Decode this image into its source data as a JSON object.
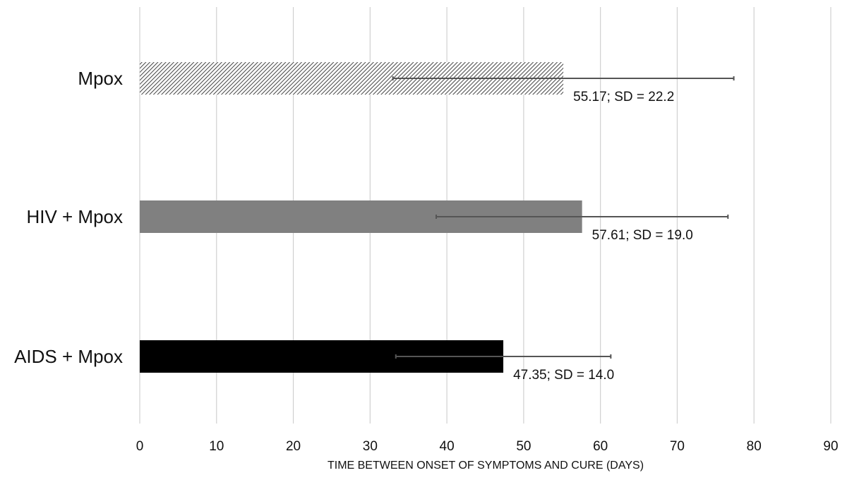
{
  "chart_data": {
    "type": "bar",
    "orientation": "horizontal",
    "title": "",
    "xlabel": "TIME BETWEEN ONSET OF SYMPTOMS AND CURE  (DAYS)",
    "ylabel": "",
    "xlim": [
      0,
      90
    ],
    "xticks": [
      0,
      10,
      20,
      30,
      40,
      50,
      60,
      70,
      80,
      90
    ],
    "grid": "vertical",
    "categories": [
      "Mpox",
      "HIV + Mpox",
      "AIDS + Mpox"
    ],
    "values": [
      55.17,
      57.61,
      47.35
    ],
    "error": [
      22.2,
      19.0,
      14.0
    ],
    "data_labels": [
      "55.17; SD = 22.2",
      "57.61; SD = 19.0",
      "47.35; SD = 14.0"
    ],
    "fills": [
      "hatched",
      "#808080",
      "#000000"
    ]
  }
}
